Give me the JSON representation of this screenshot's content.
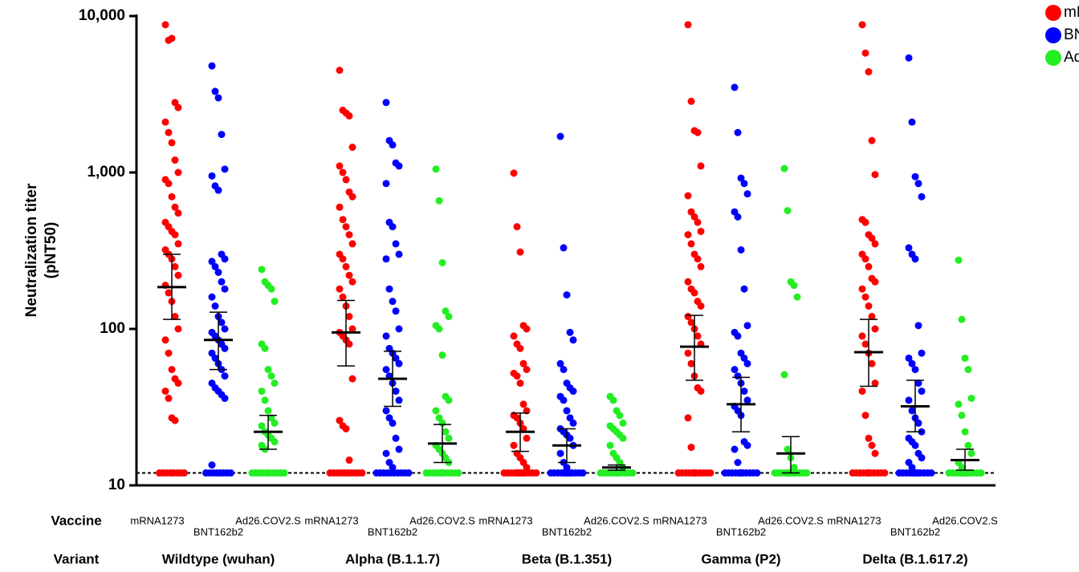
{
  "chart_data": {
    "type": "dot",
    "ylabel": [
      "Neutralization titer",
      "(pNT50)"
    ],
    "vaccine_label": "Vaccine",
    "variant_label": "Variant",
    "variants": [
      "Wildtype (wuhan)",
      "Alpha (B.1.1.7)",
      "Beta (B.1.351)",
      "Gamma (P2)",
      "Delta (B.1.617.2)"
    ],
    "ylim": [
      10,
      10000
    ],
    "log_scale": true,
    "yticks": [
      10,
      100,
      {
        "value": 1000,
        "label": "1,000"
      },
      {
        "value": 10000,
        "label": "10,000"
      }
    ],
    "threshold": 12,
    "series": [
      {
        "name": "mRNA1273",
        "color": "#ff0000",
        "values": [
          [
            8800,
            7000,
            7200,
            2800,
            2600,
            2100,
            1800,
            1550,
            1200,
            1000,
            900,
            850,
            700,
            600,
            550,
            480,
            450,
            420,
            400,
            350,
            320,
            300,
            280,
            250,
            220,
            190,
            170,
            150,
            120,
            100,
            85,
            70,
            55,
            48,
            45,
            40,
            36,
            27,
            26,
            12,
            12,
            12,
            12,
            12,
            12,
            12,
            12
          ],
          [
            4500,
            2500,
            2400,
            2300,
            1450,
            1100,
            1000,
            900,
            750,
            700,
            600,
            500,
            450,
            400,
            350,
            300,
            280,
            250,
            220,
            200,
            180,
            160,
            140,
            120,
            100,
            95,
            90,
            85,
            80,
            48,
            26,
            24,
            23,
            14.5,
            12,
            12,
            12,
            12,
            12,
            12,
            12,
            12,
            12,
            12
          ],
          [
            990,
            450,
            310,
            105,
            100,
            90,
            80,
            75,
            60,
            55,
            52,
            50,
            45,
            33,
            30,
            28,
            27,
            25,
            23,
            20,
            18,
            16,
            15,
            14,
            13,
            12,
            12,
            12,
            12,
            12,
            12,
            12,
            12,
            12,
            12,
            12,
            12,
            12,
            12
          ],
          [
            8800,
            2850,
            1850,
            1800,
            1100,
            710,
            560,
            520,
            480,
            420,
            400,
            350,
            300,
            280,
            250,
            200,
            180,
            170,
            150,
            140,
            120,
            110,
            100,
            90,
            80,
            70,
            60,
            50,
            42,
            40,
            27,
            17.5,
            12,
            12,
            12,
            12,
            12,
            12,
            12,
            12,
            12,
            12,
            12,
            12
          ],
          [
            8800,
            5800,
            4400,
            1600,
            970,
            500,
            480,
            400,
            380,
            350,
            300,
            280,
            250,
            210,
            200,
            180,
            160,
            140,
            120,
            100,
            90,
            80,
            70,
            60,
            45,
            40,
            28,
            20,
            18,
            16,
            12,
            12,
            12,
            12,
            12,
            12,
            12,
            12,
            12,
            12,
            12,
            12
          ]
        ],
        "mean": [
          185,
          95,
          22,
          77,
          71
        ],
        "ci_low": [
          115,
          58,
          16.5,
          47,
          43
        ],
        "ci_high": [
          300,
          152,
          29,
          122,
          115
        ]
      },
      {
        "name": "BNT162b2",
        "color": "#0000ff",
        "values": [
          [
            4800,
            3300,
            3000,
            1750,
            1050,
            950,
            820,
            770,
            300,
            280,
            270,
            250,
            230,
            200,
            180,
            160,
            140,
            120,
            110,
            100,
            95,
            90,
            85,
            80,
            75,
            70,
            65,
            60,
            55,
            50,
            45,
            42,
            40,
            38,
            36,
            13.5,
            12,
            12,
            12,
            12,
            12,
            12,
            12,
            12
          ],
          [
            2800,
            1600,
            1500,
            1150,
            1100,
            850,
            480,
            450,
            350,
            300,
            280,
            180,
            150,
            130,
            100,
            90,
            75,
            70,
            65,
            60,
            55,
            50,
            45,
            40,
            35,
            30,
            27,
            25,
            20,
            17,
            16,
            14,
            13,
            12,
            12,
            12,
            12,
            12,
            12,
            12,
            12,
            12,
            12
          ],
          [
            1700,
            330,
            165,
            95,
            85,
            60,
            55,
            45,
            42,
            40,
            37,
            35,
            30,
            27,
            25,
            23,
            22,
            21,
            20,
            18,
            16,
            14,
            13,
            12,
            12,
            12,
            12,
            12,
            12,
            12,
            12,
            12,
            12,
            12,
            12,
            12,
            12
          ],
          [
            3500,
            1800,
            920,
            850,
            730,
            560,
            520,
            320,
            180,
            105,
            95,
            90,
            70,
            65,
            60,
            55,
            50,
            45,
            40,
            35,
            32,
            30,
            28,
            19,
            18,
            17,
            14,
            12,
            12,
            12,
            12,
            12,
            12,
            12,
            12,
            12,
            12,
            12,
            12
          ],
          [
            5400,
            2100,
            940,
            850,
            700,
            330,
            300,
            280,
            105,
            70,
            65,
            60,
            55,
            45,
            40,
            35,
            30,
            27,
            25,
            22,
            20,
            19,
            18,
            16,
            15,
            14,
            13,
            12,
            12,
            12,
            12,
            12,
            12,
            12,
            12,
            12,
            12,
            12,
            12,
            12,
            12
          ]
        ],
        "mean": [
          85,
          48,
          18,
          33,
          32
        ],
        "ci_low": [
          55,
          32,
          14,
          22,
          22
        ],
        "ci_high": [
          128,
          72,
          23,
          49,
          47
        ]
      },
      {
        "name": "Ad26.COV2.S",
        "color": "#22ee22",
        "values": [
          [
            240,
            200,
            190,
            180,
            150,
            80,
            75,
            55,
            50,
            45,
            40,
            35,
            30,
            27,
            25,
            24,
            22,
            21,
            20,
            19,
            18,
            17,
            12,
            12,
            12,
            12,
            12,
            12,
            12,
            12,
            12,
            12
          ],
          [
            1050,
            660,
            265,
            130,
            120,
            105,
            100,
            68,
            37,
            35,
            30,
            27,
            25,
            22,
            20,
            18,
            17,
            16,
            15,
            14,
            12,
            12,
            12,
            12,
            12,
            12,
            12,
            12,
            12,
            12,
            12,
            12
          ],
          [
            37,
            35,
            30,
            28,
            25,
            24,
            23,
            22,
            21,
            20,
            18,
            16,
            15,
            14,
            13,
            12,
            12,
            12,
            12,
            12,
            12,
            12,
            12,
            12,
            12,
            12,
            12
          ],
          [
            1060,
            570,
            200,
            190,
            160,
            51,
            17,
            15,
            13,
            12,
            12,
            12,
            12,
            12,
            12,
            12,
            12,
            12,
            12,
            12,
            12,
            12,
            12
          ],
          [
            275,
            115,
            65,
            55,
            36,
            33,
            28,
            22,
            18,
            16,
            14,
            13,
            12,
            12,
            12,
            12,
            12,
            12,
            12,
            12,
            12,
            12,
            12,
            12,
            12,
            12
          ]
        ],
        "mean": [
          22,
          18.5,
          13,
          16,
          14.5
        ],
        "ci_low": [
          17,
          14,
          12.5,
          12,
          12.5
        ],
        "ci_high": [
          28,
          24.5,
          13.5,
          20.5,
          17
        ]
      }
    ]
  }
}
